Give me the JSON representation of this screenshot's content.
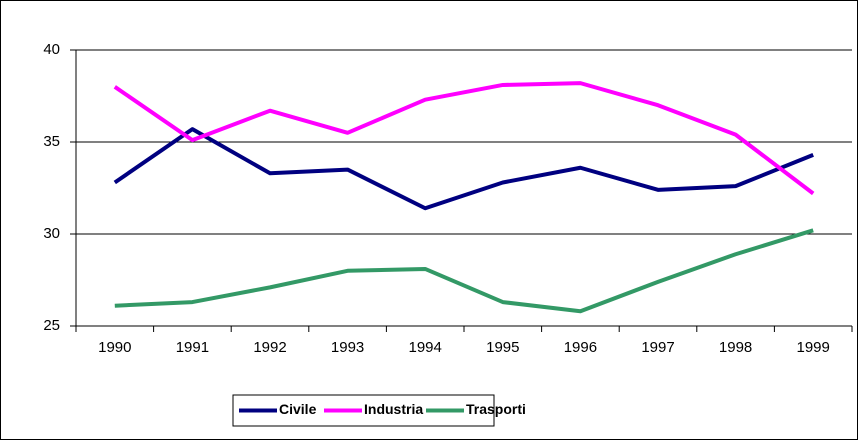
{
  "chart_data": {
    "type": "line",
    "categories": [
      "1990",
      "1991",
      "1992",
      "1993",
      "1994",
      "1995",
      "1996",
      "1997",
      "1998",
      "1999"
    ],
    "series": [
      {
        "name": "Civile",
        "color": "#000080",
        "values": [
          32.8,
          35.7,
          33.3,
          33.5,
          31.4,
          32.8,
          33.6,
          32.4,
          32.6,
          34.3
        ]
      },
      {
        "name": "Industria",
        "color": "#ff00ff",
        "values": [
          38.0,
          35.1,
          36.7,
          35.5,
          37.3,
          38.1,
          38.2,
          37.0,
          35.4,
          32.2
        ]
      },
      {
        "name": "Trasporti",
        "color": "#339966",
        "values": [
          26.1,
          26.3,
          27.1,
          28.0,
          28.1,
          26.3,
          25.8,
          27.4,
          28.9,
          30.2
        ]
      }
    ],
    "ylim": [
      25,
      40
    ],
    "yticks": [
      25,
      30,
      35,
      40
    ],
    "grid": true,
    "legend": "bottom"
  }
}
